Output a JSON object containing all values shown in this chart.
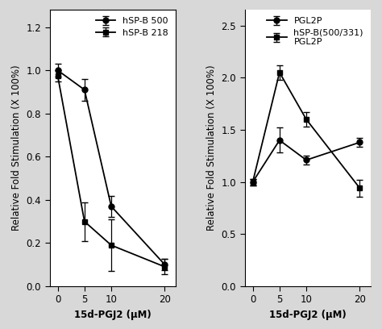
{
  "left": {
    "x": [
      0,
      5,
      10,
      20
    ],
    "series1": {
      "label": "hSP-B 500",
      "y": [
        1.0,
        0.91,
        0.37,
        0.1
      ],
      "yerr": [
        0.03,
        0.05,
        0.05,
        0.025
      ],
      "marker": "o"
    },
    "series2": {
      "label": "hSP-B 218",
      "y": [
        0.975,
        0.3,
        0.19,
        0.09
      ],
      "yerr": [
        0.025,
        0.09,
        0.12,
        0.035
      ],
      "marker": "s"
    },
    "ylabel": "Relative Fold Stimulation (X 100%)",
    "xlabel": "15d-PGJ2 (μM)",
    "ylim": [
      0,
      1.28
    ],
    "yticks": [
      0,
      0.2,
      0.4,
      0.6,
      0.8,
      1.0,
      1.2
    ],
    "xticks": [
      0,
      5,
      10,
      20
    ],
    "xlim": [
      -1.5,
      22
    ]
  },
  "right": {
    "x": [
      0,
      5,
      10,
      20
    ],
    "series1": {
      "label": "PGL2P",
      "y": [
        1.0,
        1.4,
        1.21,
        1.38
      ],
      "yerr": [
        0.03,
        0.12,
        0.04,
        0.04
      ],
      "marker": "o"
    },
    "series2": {
      "label": "hSP-B(500/331)\nPGL2P",
      "y": [
        1.0,
        2.05,
        1.6,
        0.94
      ],
      "yerr": [
        0.03,
        0.07,
        0.07,
        0.08
      ],
      "marker": "s"
    },
    "ylabel": "Relative Fold Stimulation (X 100%)",
    "xlabel": "15d-PGJ2 (μM)",
    "ylim": [
      0,
      2.65
    ],
    "yticks": [
      0,
      0.5,
      1.0,
      1.5,
      2.0,
      2.5
    ],
    "xticks": [
      0,
      5,
      10,
      20
    ],
    "xlim": [
      -1.5,
      22
    ]
  },
  "line_color": "#000000",
  "fig_bg_color": "#d8d8d8",
  "panel_bg_color": "#ffffff",
  "font_size_label": 8.5,
  "font_size_tick": 8.5,
  "font_size_legend": 8,
  "linewidth": 1.3,
  "markersize": 5,
  "capsize": 3,
  "elinewidth": 0.9
}
